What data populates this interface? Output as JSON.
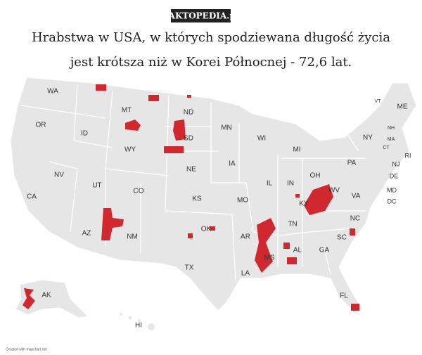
{
  "logo": "FAKTOPEDIA.pl",
  "title_lines": [
    "Hrabstwa w USA, w których spodziewana długość życia",
    "jest krótsza niż w Korei Północnej - 72,6 lat."
  ],
  "map": {
    "labels": [
      "WA",
      "MT",
      "ND",
      "OR",
      "ID",
      "WY",
      "SD",
      "MN",
      "WI",
      "MI",
      "NY",
      "VT",
      "ME",
      "NH",
      "MA",
      "CT",
      "RI",
      "PA",
      "NJ",
      "DE",
      "MD",
      "DC",
      "NE",
      "IA",
      "IL",
      "IN",
      "OH",
      "WV",
      "VA",
      "NV",
      "UT",
      "CO",
      "CA",
      "KS",
      "MO",
      "KY",
      "NC",
      "TN",
      "OK",
      "AR",
      "SC",
      "AZ",
      "NM",
      "MS",
      "AL",
      "GA",
      "TX",
      "LA",
      "FL",
      "AK",
      "HI"
    ]
  },
  "footer": "Created with mapchart.net"
}
